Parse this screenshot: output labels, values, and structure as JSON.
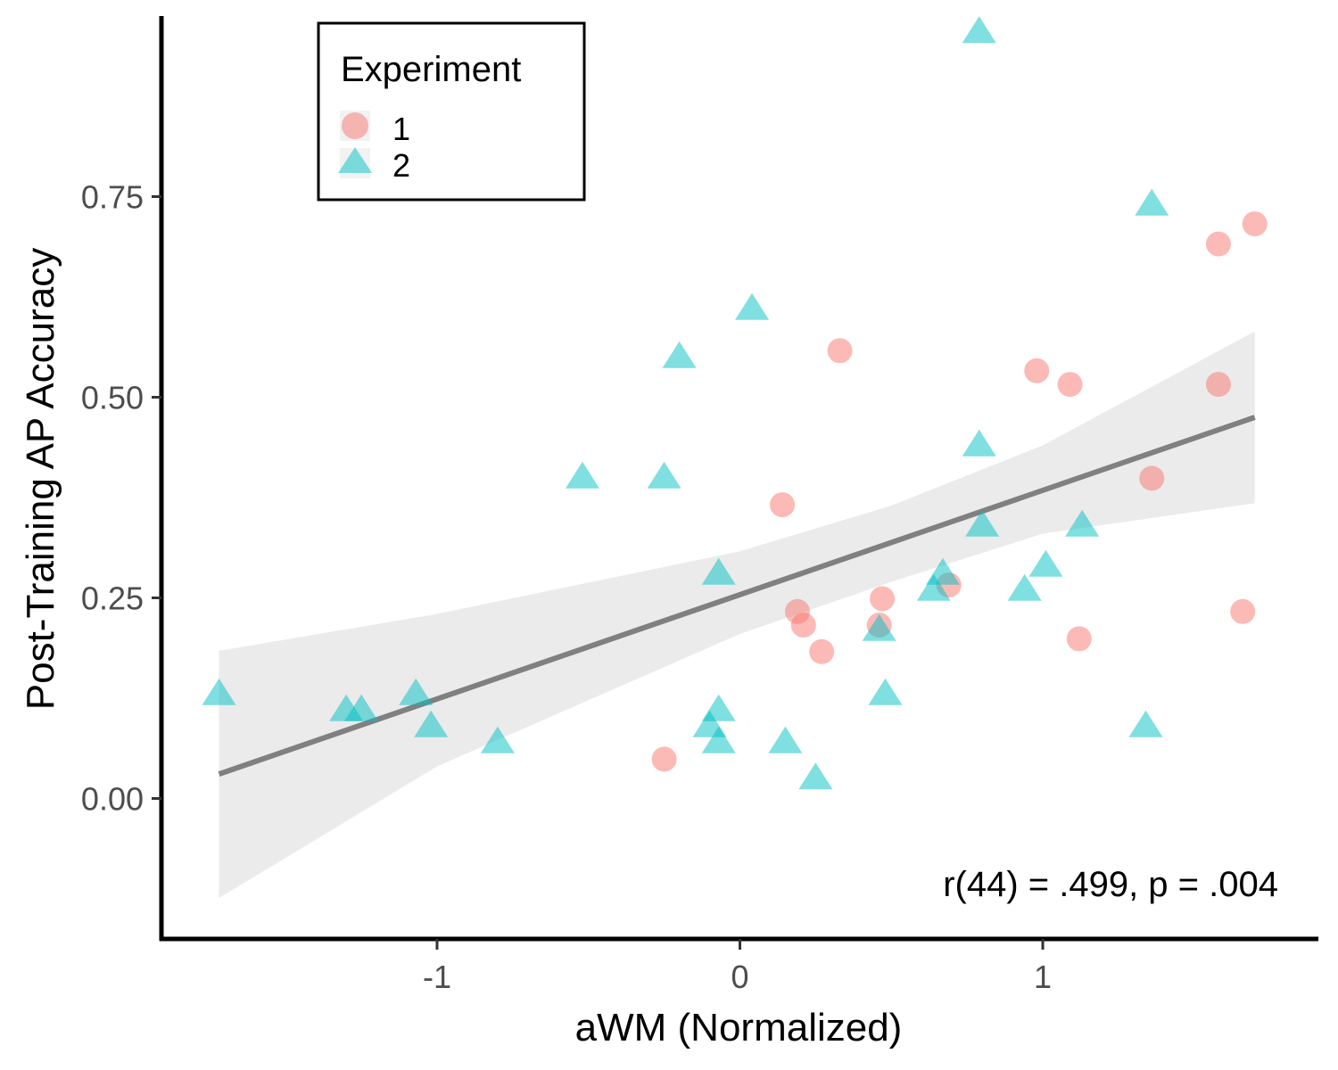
{
  "chart_data": {
    "type": "scatter",
    "title": "",
    "xlabel": "aWM (Normalized)",
    "ylabel": "Post-Training AP Accuracy",
    "xlim": [
      -1.91,
      1.91
    ],
    "ylim": [
      -0.175,
      0.975
    ],
    "x_ticks": [
      {
        "value": -1,
        "label": "-1"
      },
      {
        "value": 0,
        "label": "0"
      },
      {
        "value": 1,
        "label": "1"
      }
    ],
    "y_ticks": [
      {
        "value": 0.0,
        "label": "0.00"
      },
      {
        "value": 0.25,
        "label": "0.25"
      },
      {
        "value": 0.5,
        "label": "0.50"
      },
      {
        "value": 0.75,
        "label": "0.75"
      }
    ],
    "grid": false,
    "legend": {
      "title": "Experiment",
      "position": "top-left",
      "entries": [
        {
          "label": "1",
          "shape": "circle",
          "color": "#F8766D"
        },
        {
          "label": "2",
          "shape": "triangle",
          "color": "#00BFC4"
        }
      ]
    },
    "series": [
      {
        "name": "1",
        "shape": "circle",
        "color": "#F8766D",
        "points": [
          [
            -0.25,
            0.049
          ],
          [
            0.14,
            0.366
          ],
          [
            0.19,
            0.233
          ],
          [
            0.21,
            0.216
          ],
          [
            0.27,
            0.183
          ],
          [
            0.33,
            0.558
          ],
          [
            0.46,
            0.216
          ],
          [
            0.47,
            0.249
          ],
          [
            0.69,
            0.266
          ],
          [
            0.98,
            0.533
          ],
          [
            1.09,
            0.516
          ],
          [
            1.12,
            0.199
          ],
          [
            1.36,
            0.399
          ],
          [
            1.58,
            0.516
          ],
          [
            1.58,
            0.691
          ],
          [
            1.66,
            0.233
          ],
          [
            1.7,
            0.716
          ]
        ]
      },
      {
        "name": "2",
        "shape": "triangle",
        "color": "#00BFC4",
        "points": [
          [
            -1.72,
            0.129
          ],
          [
            -1.3,
            0.109
          ],
          [
            -1.25,
            0.109
          ],
          [
            -1.07,
            0.129
          ],
          [
            -1.02,
            0.089
          ],
          [
            -0.8,
            0.069
          ],
          [
            -0.52,
            0.399
          ],
          [
            -0.25,
            0.399
          ],
          [
            -0.2,
            0.549
          ],
          [
            -0.1,
            0.089
          ],
          [
            -0.07,
            0.109
          ],
          [
            -0.07,
            0.069
          ],
          [
            -0.07,
            0.279
          ],
          [
            0.04,
            0.609
          ],
          [
            0.15,
            0.069
          ],
          [
            0.25,
            0.024
          ],
          [
            0.46,
            0.209
          ],
          [
            0.48,
            0.129
          ],
          [
            0.64,
            0.259
          ],
          [
            0.67,
            0.279
          ],
          [
            0.79,
            0.954
          ],
          [
            0.79,
            0.439
          ],
          [
            0.8,
            0.339
          ],
          [
            0.94,
            0.259
          ],
          [
            1.01,
            0.289
          ],
          [
            1.13,
            0.339
          ],
          [
            1.34,
            0.089
          ],
          [
            1.36,
            0.739
          ]
        ]
      }
    ],
    "regression": {
      "x_range": [
        -1.72,
        1.7
      ],
      "intercept": 0.254,
      "slope": 0.13,
      "confidence_band": [
        {
          "x": -1.72,
          "lower": -0.124,
          "upper": 0.184
        },
        {
          "x": -1.0,
          "lower": 0.04,
          "upper": 0.23
        },
        {
          "x": 0.0,
          "lower": 0.205,
          "upper": 0.308
        },
        {
          "x": 0.5,
          "lower": 0.27,
          "upper": 0.365
        },
        {
          "x": 1.0,
          "lower": 0.33,
          "upper": 0.44
        },
        {
          "x": 1.7,
          "lower": 0.368,
          "upper": 0.582
        }
      ],
      "line_color": "#808080",
      "band_color": "#EBEBEB"
    },
    "annotation": "r(44) = .499, p = .004"
  }
}
